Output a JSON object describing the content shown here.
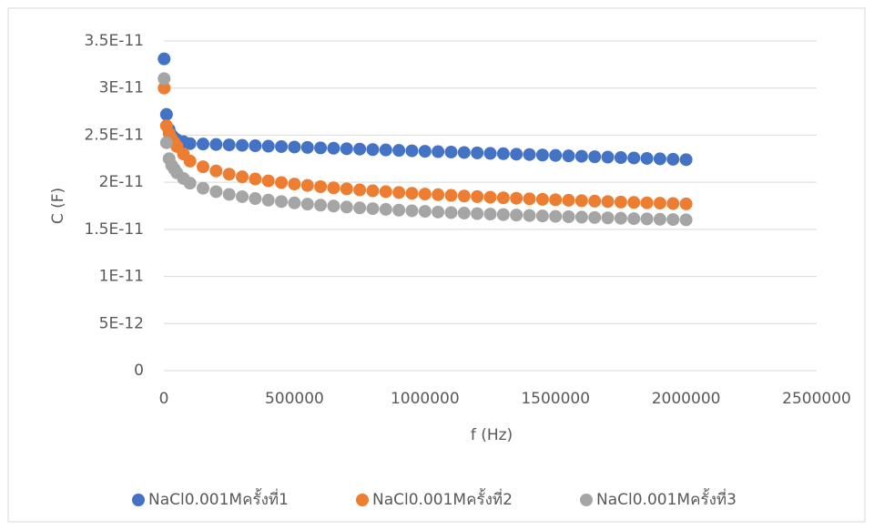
{
  "chart_data": {
    "type": "scatter",
    "x_label": "f (Hz)",
    "y_label": "C (F)",
    "x": [
      1000,
      10000,
      20000,
      30000,
      40000,
      50000,
      75000,
      100000,
      150000,
      200000,
      250000,
      300000,
      350000,
      400000,
      450000,
      500000,
      550000,
      600000,
      650000,
      700000,
      750000,
      800000,
      850000,
      900000,
      950000,
      1000000,
      1050000,
      1100000,
      1150000,
      1200000,
      1250000,
      1300000,
      1350000,
      1400000,
      1450000,
      1500000,
      1550000,
      1600000,
      1650000,
      1700000,
      1750000,
      1800000,
      1850000,
      1900000,
      1950000,
      2000000
    ],
    "series": [
      {
        "name": "NaCl0.001Mครั้งที่1",
        "color": "#4472c4",
        "values": [
          3.31e-11,
          2.72e-11,
          2.56e-11,
          2.5e-11,
          2.47e-11,
          2.45e-11,
          2.43e-11,
          2.41e-11,
          2.406e-11,
          2.401e-11,
          2.397e-11,
          2.392e-11,
          2.388e-11,
          2.383e-11,
          2.379e-11,
          2.374e-11,
          2.37e-11,
          2.365e-11,
          2.361e-11,
          2.356e-11,
          2.352e-11,
          2.347e-11,
          2.343e-11,
          2.338e-11,
          2.334e-11,
          2.329e-11,
          2.325e-11,
          2.321e-11,
          2.316e-11,
          2.312e-11,
          2.307e-11,
          2.303e-11,
          2.298e-11,
          2.294e-11,
          2.289e-11,
          2.285e-11,
          2.28e-11,
          2.276e-11,
          2.271e-11,
          2.267e-11,
          2.262e-11,
          2.258e-11,
          2.253e-11,
          2.249e-11,
          2.244e-11,
          2.24e-11
        ]
      },
      {
        "name": "NaCl0.001Mครั้งที่2",
        "color": "#ed7d31",
        "values": [
          3e-11,
          2.6e-11,
          2.52e-11,
          2.46e-11,
          2.42e-11,
          2.38e-11,
          2.3e-11,
          2.225e-11,
          2.164e-11,
          2.12e-11,
          2.086e-11,
          2.058e-11,
          2.035e-11,
          2.015e-11,
          1.997e-11,
          1.981e-11,
          1.966e-11,
          1.953e-11,
          1.941e-11,
          1.93e-11,
          1.919e-11,
          1.909e-11,
          1.9e-11,
          1.891e-11,
          1.883e-11,
          1.875e-11,
          1.868e-11,
          1.861e-11,
          1.854e-11,
          1.848e-11,
          1.841e-11,
          1.835e-11,
          1.83e-11,
          1.824e-11,
          1.819e-11,
          1.814e-11,
          1.809e-11,
          1.804e-11,
          1.799e-11,
          1.795e-11,
          1.79e-11,
          1.786e-11,
          1.782e-11,
          1.778e-11,
          1.774e-11,
          1.77e-11
        ]
      },
      {
        "name": "NaCl0.001Mครั้งที่3",
        "color": "#a5a5a5",
        "values": [
          3.1e-11,
          2.42e-11,
          2.25e-11,
          2.18e-11,
          2.14e-11,
          2.1e-11,
          2.04e-11,
          1.99e-11,
          1.937e-11,
          1.9e-11,
          1.871e-11,
          1.847e-11,
          1.827e-11,
          1.81e-11,
          1.795e-11,
          1.781e-11,
          1.768e-11,
          1.757e-11,
          1.747e-11,
          1.737e-11,
          1.728e-11,
          1.72e-11,
          1.712e-11,
          1.704e-11,
          1.697e-11,
          1.691e-11,
          1.684e-11,
          1.678e-11,
          1.673e-11,
          1.667e-11,
          1.662e-11,
          1.657e-11,
          1.652e-11,
          1.647e-11,
          1.642e-11,
          1.638e-11,
          1.634e-11,
          1.63e-11,
          1.626e-11,
          1.622e-11,
          1.618e-11,
          1.614e-11,
          1.611e-11,
          1.607e-11,
          1.604e-11,
          1.601e-11
        ]
      }
    ],
    "xlim": [
      0,
      2500000
    ],
    "xticks": [
      0,
      500000,
      1000000,
      1500000,
      2000000,
      2500000
    ],
    "ylim": [
      0,
      3.5e-11
    ],
    "yticks": [
      0,
      {
        "value": 5e-12,
        "label": "5E-12"
      },
      {
        "value": 1e-11,
        "label": "1E-11"
      },
      {
        "value": 1.5e-11,
        "label": "1.5E-11"
      },
      {
        "value": 2e-11,
        "label": "2E-11"
      },
      {
        "value": 2.5e-11,
        "label": "2.5E-11"
      },
      {
        "value": 3e-11,
        "label": "3E-11"
      },
      {
        "value": 3.5e-11,
        "label": "3.5E-11"
      }
    ],
    "grid": true,
    "legend": "bottom"
  }
}
